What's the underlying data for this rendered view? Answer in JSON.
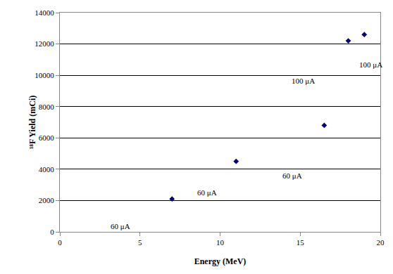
{
  "chart_data": {
    "type": "scatter",
    "x_label": "Energy (MeV)",
    "y_label": "¹⁸F Yield (mCi)",
    "x": [
      7,
      11,
      16.5,
      18,
      19
    ],
    "values": [
      2100,
      4500,
      6800,
      12200,
      12600
    ],
    "color": "#000080",
    "marker": "diamond",
    "xlim": [
      0,
      20
    ],
    "xticks": [
      0,
      5,
      10,
      15,
      20
    ],
    "ylim": [
      0,
      14000
    ],
    "yticks": [
      0,
      2000,
      4000,
      6000,
      8000,
      10000,
      12000,
      14000
    ],
    "grid": true,
    "annotations": [
      {
        "text": "60 μA",
        "x": 3.8,
        "y": 360
      },
      {
        "text": "60 μA",
        "x": 9.2,
        "y": 2500
      },
      {
        "text": "60 μA",
        "x": 14.5,
        "y": 3600
      },
      {
        "text": "100 μA",
        "x": 15.2,
        "y": 9640
      },
      {
        "text": "100 μA",
        "x": 19.4,
        "y": 10670
      }
    ]
  }
}
